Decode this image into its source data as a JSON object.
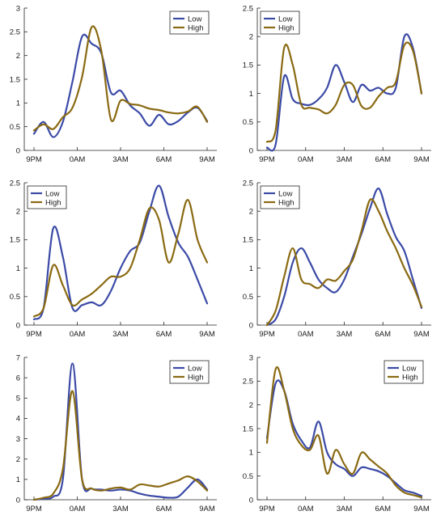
{
  "colors": {
    "low": "#3b4aa6",
    "high": "#8a6a12"
  },
  "chart_data": [
    {
      "type": "line",
      "x_ticks": [
        "9PM",
        "0AM",
        "3AM",
        "6AM",
        "9AM"
      ],
      "y_ticks": [
        "0",
        "0.5",
        "1",
        "1.5",
        "2",
        "2.5",
        "3"
      ],
      "ylim": [
        0,
        3
      ],
      "legend_placement": "top-right",
      "series": [
        {
          "name": "Low",
          "color_key": "low",
          "x": [
            0,
            0.5,
            1,
            1.5,
            2,
            2.5,
            3,
            3.5,
            4,
            4.5,
            5,
            5.5,
            6,
            6.5,
            7,
            7.5,
            8,
            8.5,
            9
          ],
          "values": [
            0.35,
            0.6,
            0.28,
            0.6,
            1.45,
            2.4,
            2.25,
            2.05,
            1.22,
            1.26,
            0.95,
            0.78,
            0.52,
            0.75,
            0.55,
            0.62,
            0.8,
            0.9,
            0.62
          ]
        },
        {
          "name": "High",
          "color_key": "high",
          "x": [
            0,
            0.5,
            1,
            1.5,
            2,
            2.5,
            3,
            3.5,
            4,
            4.5,
            5,
            5.5,
            6,
            6.5,
            7,
            7.5,
            8,
            8.5,
            9
          ],
          "values": [
            0.42,
            0.55,
            0.45,
            0.7,
            0.9,
            1.55,
            2.6,
            2.1,
            0.65,
            1.05,
            0.98,
            0.95,
            0.88,
            0.85,
            0.8,
            0.78,
            0.82,
            0.92,
            0.6
          ]
        }
      ]
    },
    {
      "type": "line",
      "x_ticks": [
        "9PM",
        "0AM",
        "3AM",
        "6AM",
        "9AM"
      ],
      "y_ticks": [
        "0",
        "0.5",
        "1",
        "1.5",
        "2",
        "2.5"
      ],
      "ylim": [
        0,
        2.5
      ],
      "legend_placement": "top-left",
      "series": [
        {
          "name": "Low",
          "color_key": "low",
          "x": [
            0,
            0.5,
            1,
            1.5,
            2,
            2.5,
            3,
            3.5,
            4,
            4.5,
            5,
            5.5,
            6,
            6.5,
            7,
            7.5,
            8,
            8.5,
            9
          ],
          "values": [
            0.05,
            0.1,
            1.3,
            0.9,
            0.82,
            0.8,
            0.9,
            1.1,
            1.5,
            1.2,
            0.85,
            1.15,
            1.05,
            1.1,
            1.0,
            1.1,
            2.0,
            1.8,
            1.0
          ]
        },
        {
          "name": "High",
          "color_key": "high",
          "x": [
            0,
            0.5,
            1,
            1.5,
            2,
            2.5,
            3,
            3.5,
            4,
            4.5,
            5,
            5.5,
            6,
            6.5,
            7,
            7.5,
            8,
            8.5,
            9
          ],
          "values": [
            0.15,
            0.35,
            1.8,
            1.5,
            0.8,
            0.75,
            0.72,
            0.65,
            0.8,
            1.15,
            1.15,
            0.78,
            0.75,
            0.95,
            1.1,
            1.2,
            1.85,
            1.75,
            1.0
          ]
        }
      ]
    },
    {
      "type": "line",
      "x_ticks": [
        "9PM",
        "0AM",
        "3AM",
        "6AM",
        "9AM"
      ],
      "y_ticks": [
        "0",
        "0.5",
        "1",
        "1.5",
        "2",
        "2.5"
      ],
      "ylim": [
        0,
        2.5
      ],
      "legend_placement": "top-left",
      "series": [
        {
          "name": "Low",
          "color_key": "low",
          "x": [
            0,
            0.5,
            1,
            1.5,
            2,
            2.5,
            3,
            3.5,
            4,
            4.5,
            5,
            5.5,
            6,
            6.5,
            7,
            7.5,
            8,
            8.5,
            9
          ],
          "values": [
            0.1,
            0.3,
            1.7,
            1.2,
            0.3,
            0.35,
            0.4,
            0.35,
            0.6,
            1.0,
            1.3,
            1.45,
            2.0,
            2.45,
            1.9,
            1.45,
            1.2,
            0.8,
            0.38
          ]
        },
        {
          "name": "High",
          "color_key": "high",
          "x": [
            0,
            0.5,
            1,
            1.5,
            2,
            2.5,
            3,
            3.5,
            4,
            4.5,
            5,
            5.5,
            6,
            6.5,
            7,
            7.5,
            8,
            8.5,
            9
          ],
          "values": [
            0.15,
            0.3,
            1.05,
            0.7,
            0.35,
            0.45,
            0.55,
            0.7,
            0.85,
            0.85,
            1.0,
            1.5,
            2.05,
            1.85,
            1.1,
            1.6,
            2.2,
            1.5,
            1.1
          ]
        }
      ]
    },
    {
      "type": "line",
      "x_ticks": [
        "9PM",
        "0AM",
        "3AM",
        "6AM",
        "9AM"
      ],
      "y_ticks": [
        "0",
        "0.5",
        "1",
        "1.5",
        "2",
        "2.5"
      ],
      "ylim": [
        0,
        2.5
      ],
      "legend_placement": "top-left",
      "series": [
        {
          "name": "Low",
          "color_key": "low",
          "x": [
            0,
            0.5,
            1,
            1.5,
            2,
            2.5,
            3,
            3.5,
            4,
            4.5,
            5,
            5.5,
            6,
            6.5,
            7,
            7.5,
            8,
            8.5,
            9
          ],
          "values": [
            0.0,
            0.1,
            0.5,
            1.1,
            1.35,
            1.1,
            0.8,
            0.65,
            0.58,
            0.8,
            1.2,
            1.6,
            2.05,
            2.4,
            1.95,
            1.55,
            1.3,
            0.8,
            0.3
          ]
        },
        {
          "name": "High",
          "color_key": "high",
          "x": [
            0,
            0.5,
            1,
            1.5,
            2,
            2.5,
            3,
            3.5,
            4,
            4.5,
            5,
            5.5,
            6,
            6.5,
            7,
            7.5,
            8,
            8.5,
            9
          ],
          "values": [
            0.0,
            0.25,
            0.85,
            1.35,
            0.8,
            0.72,
            0.65,
            0.8,
            0.78,
            0.95,
            1.15,
            1.65,
            2.2,
            2.0,
            1.65,
            1.35,
            1.0,
            0.7,
            0.32
          ]
        }
      ]
    },
    {
      "type": "line",
      "x_ticks": [
        "9PM",
        "0AM",
        "3AM",
        "6AM",
        "9AM"
      ],
      "y_ticks": [
        "0",
        "1",
        "2",
        "3",
        "4",
        "5",
        "6",
        "7"
      ],
      "ylim": [
        0,
        7
      ],
      "legend_placement": "top-right",
      "series": [
        {
          "name": "Low",
          "color_key": "low",
          "x": [
            0,
            0.5,
            1,
            1.5,
            2,
            2.5,
            3,
            3.5,
            4,
            4.5,
            5,
            5.5,
            6,
            6.5,
            7,
            7.5,
            8,
            8.5,
            9
          ],
          "values": [
            0.0,
            0.05,
            0.15,
            1.0,
            6.7,
            1.0,
            0.55,
            0.5,
            0.45,
            0.5,
            0.45,
            0.3,
            0.2,
            0.15,
            0.1,
            0.15,
            0.6,
            1.0,
            0.5
          ]
        },
        {
          "name": "High",
          "color_key": "high",
          "x": [
            0,
            0.5,
            1,
            1.5,
            2,
            2.5,
            3,
            3.5,
            4,
            4.5,
            5,
            5.5,
            6,
            6.5,
            7,
            7.5,
            8,
            8.5,
            9
          ],
          "values": [
            0.0,
            0.1,
            0.3,
            1.5,
            5.35,
            1.0,
            0.55,
            0.45,
            0.55,
            0.6,
            0.5,
            0.75,
            0.7,
            0.65,
            0.8,
            0.95,
            1.15,
            0.9,
            0.45
          ]
        }
      ]
    },
    {
      "type": "line",
      "x_ticks": [
        "9PM",
        "0AM",
        "3AM",
        "6AM",
        "9AM"
      ],
      "y_ticks": [
        "0",
        "0.5",
        "1",
        "1.5",
        "2",
        "2.5",
        "3"
      ],
      "ylim": [
        0,
        3
      ],
      "legend_placement": "top-right",
      "series": [
        {
          "name": "Low",
          "color_key": "low",
          "x": [
            0,
            0.5,
            1,
            1.5,
            2,
            2.5,
            3,
            3.5,
            4,
            4.5,
            5,
            5.5,
            6,
            6.5,
            7,
            7.5,
            8,
            8.5,
            9
          ],
          "values": [
            1.3,
            2.45,
            2.3,
            1.6,
            1.25,
            1.1,
            1.65,
            1.0,
            0.75,
            0.65,
            0.5,
            0.68,
            0.65,
            0.6,
            0.5,
            0.35,
            0.2,
            0.15,
            0.08
          ]
        },
        {
          "name": "High",
          "color_key": "high",
          "x": [
            0,
            0.5,
            1,
            1.5,
            2,
            2.5,
            3,
            3.5,
            4,
            4.5,
            5,
            5.5,
            6,
            6.5,
            7,
            7.5,
            8,
            8.5,
            9
          ],
          "values": [
            1.2,
            2.75,
            2.3,
            1.5,
            1.15,
            1.05,
            1.35,
            0.55,
            1.05,
            0.75,
            0.55,
            0.99,
            0.85,
            0.7,
            0.55,
            0.3,
            0.15,
            0.1,
            0.05
          ]
        }
      ]
    }
  ]
}
